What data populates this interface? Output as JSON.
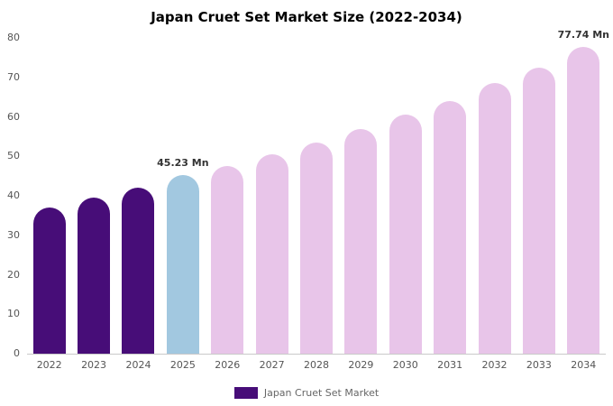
{
  "chart_data": {
    "type": "bar",
    "title": "Japan Cruet Set Market Size (2022-2034)",
    "categories": [
      "2022",
      "2023",
      "2024",
      "2025",
      "2026",
      "2027",
      "2028",
      "2029",
      "2030",
      "2031",
      "2032",
      "2033",
      "2034"
    ],
    "values": [
      37,
      39.5,
      42,
      45.23,
      47.5,
      50.5,
      53.5,
      57,
      60.5,
      64,
      68.5,
      72.5,
      77.74
    ],
    "ylim": [
      0,
      80
    ],
    "yticks": [
      0,
      10,
      20,
      30,
      40,
      50,
      60,
      70,
      80
    ],
    "grid": false,
    "annotations": [
      {
        "index": 3,
        "text": "45.23 Mn"
      },
      {
        "index": 12,
        "text": "77.74 Mn"
      }
    ],
    "series_colors": {
      "historical": "#470d78",
      "estimate": "#a2c8e0",
      "forecast": "#e8c5e9"
    },
    "bar_styles": [
      "historical",
      "historical",
      "historical",
      "estimate",
      "forecast",
      "forecast",
      "forecast",
      "forecast",
      "forecast",
      "forecast",
      "forecast",
      "forecast",
      "forecast"
    ],
    "legend": [
      {
        "label": "Japan Cruet Set Market",
        "color": "#470d78"
      }
    ],
    "legend_position": "bottom-center",
    "xlabel": "",
    "ylabel": ""
  }
}
